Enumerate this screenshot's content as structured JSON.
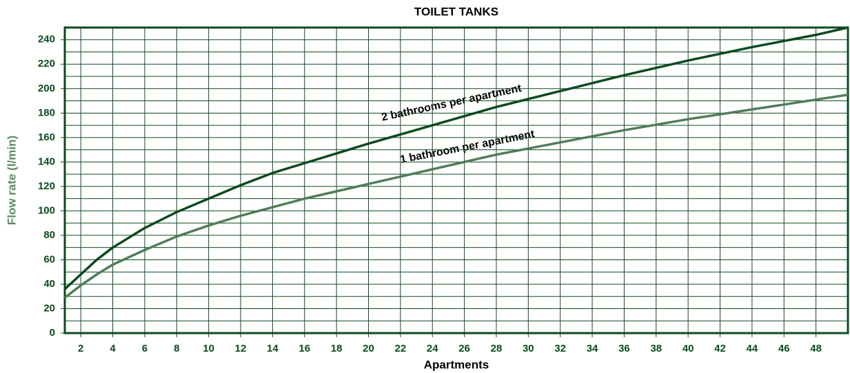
{
  "chart_data": {
    "type": "line",
    "title": "TOILET TANKS",
    "x_label": "Apartments",
    "y_label": "Flow rate (l/min)",
    "x": [
      1,
      2,
      3,
      4,
      6,
      8,
      10,
      12,
      14,
      16,
      18,
      20,
      24,
      28,
      32,
      36,
      40,
      44,
      48,
      50
    ],
    "series": [
      {
        "name": "2 bathrooms per apartment",
        "color": "#0b4a1e",
        "values": [
          36,
          48,
          60,
          70,
          86,
          99,
          110,
          121,
          131,
          139,
          147,
          155,
          170,
          185,
          198,
          211,
          223,
          234,
          244,
          250
        ]
      },
      {
        "name": "1 bathroom per apartment",
        "color": "#4f7d56",
        "values": [
          29,
          39,
          48,
          56,
          68,
          79,
          88,
          96,
          103,
          110,
          116,
          122,
          134,
          146,
          156,
          166,
          175,
          183,
          191,
          195
        ]
      }
    ],
    "xlim": [
      1,
      50
    ],
    "xticks": [
      2,
      4,
      6,
      8,
      10,
      12,
      14,
      16,
      18,
      20,
      22,
      24,
      26,
      28,
      30,
      32,
      34,
      36,
      38,
      40,
      42,
      44,
      46,
      48
    ],
    "ylim": [
      0,
      250
    ],
    "yticks": [
      0,
      20,
      40,
      60,
      80,
      100,
      120,
      140,
      160,
      180,
      200,
      220,
      240
    ],
    "y_minor_ticks": [
      10,
      30,
      50,
      70,
      90,
      110,
      130,
      150,
      170,
      190,
      210,
      230,
      250
    ],
    "grid": true
  }
}
